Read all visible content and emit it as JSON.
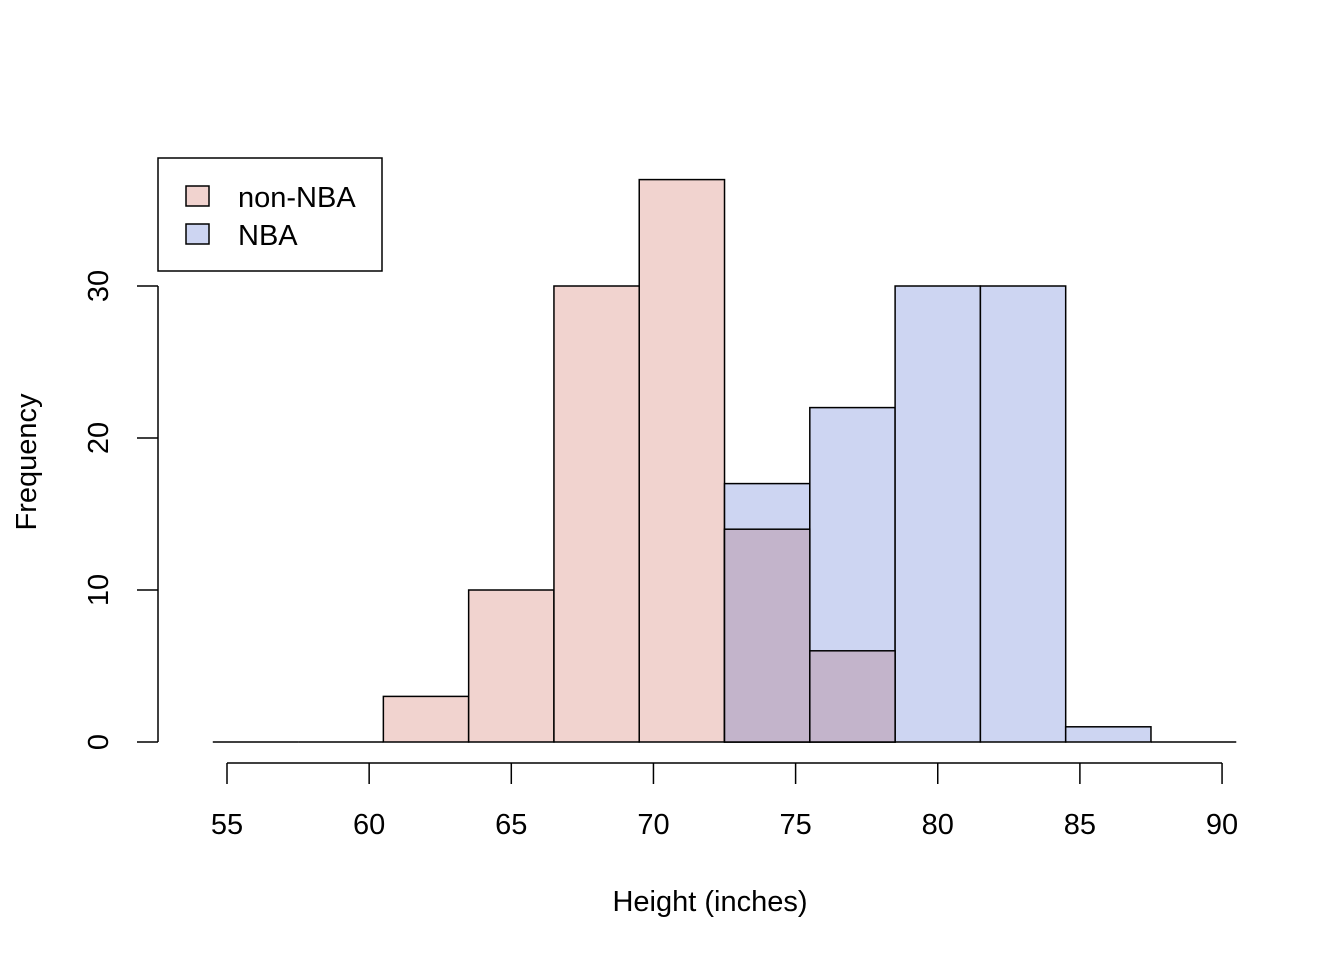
{
  "chart_data": {
    "type": "bar",
    "xlabel": "Height (inches)",
    "ylabel": "Frequency",
    "xlim": [
      55,
      90
    ],
    "ylim": [
      0,
      37
    ],
    "x_ticks": [
      55,
      60,
      65,
      70,
      75,
      80,
      85,
      90
    ],
    "y_ticks": [
      0,
      10,
      20,
      30
    ],
    "grid": false,
    "legend_position": "top-left",
    "overlap_color": "#c3b4cb",
    "series": [
      {
        "name": "non-NBA",
        "color": "#f1d3cf",
        "bins": [
          {
            "from": 54.5,
            "to": 57.5,
            "count": 0
          },
          {
            "from": 57.5,
            "to": 60.5,
            "count": 0
          },
          {
            "from": 60.5,
            "to": 63.5,
            "count": 3
          },
          {
            "from": 63.5,
            "to": 66.5,
            "count": 10
          },
          {
            "from": 66.5,
            "to": 69.5,
            "count": 30
          },
          {
            "from": 69.5,
            "to": 72.5,
            "count": 37
          },
          {
            "from": 72.5,
            "to": 75.5,
            "count": 14
          },
          {
            "from": 75.5,
            "to": 78.5,
            "count": 6
          }
        ]
      },
      {
        "name": "NBA",
        "color": "#cdd5f2",
        "bins": [
          {
            "from": 72.5,
            "to": 75.5,
            "count": 17
          },
          {
            "from": 75.5,
            "to": 78.5,
            "count": 22
          },
          {
            "from": 78.5,
            "to": 81.5,
            "count": 30
          },
          {
            "from": 81.5,
            "to": 84.5,
            "count": 30
          },
          {
            "from": 84.5,
            "to": 87.5,
            "count": 1
          },
          {
            "from": 87.5,
            "to": 90.5,
            "count": 0
          }
        ]
      }
    ]
  }
}
